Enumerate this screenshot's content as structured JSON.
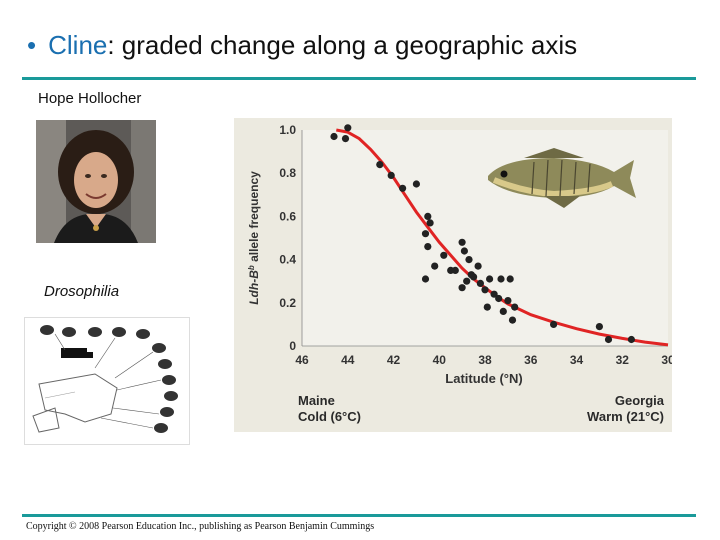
{
  "slide": {
    "bullet": "•",
    "title_key": "Cline",
    "title_rest": ": graded change along a geographic axis",
    "author": "Hope Hollocher",
    "drosophila_label": "Drosophilia",
    "copyright": "Copyright © 2008 Pearson Education Inc., publishing as Pearson Benjamin Cummings"
  },
  "colors": {
    "accent": "#1a6fb0",
    "rule": "#1a9a9a",
    "chart_bg": "#eceae0",
    "curve": "#e02424",
    "point": "#222222",
    "axis_text": "#333333"
  },
  "chart_data": {
    "type": "scatter",
    "title": "",
    "xlabel": "Latitude (°N)",
    "ylabel": "Ldh-Bb allele frequency",
    "ylabel_main": "Ldh-B",
    "ylabel_sup": "b",
    "ylabel_rest": " allele frequency",
    "xlim": [
      46,
      30
    ],
    "ylim": [
      0,
      1.0
    ],
    "xticks": [
      "46",
      "44",
      "42",
      "40",
      "38",
      "36",
      "34",
      "32",
      "30"
    ],
    "yticks": [
      "0",
      "0.2",
      "0.4",
      "0.6",
      "0.8",
      "1.0"
    ],
    "left_annotation": [
      "Maine",
      "Cold (6°C)"
    ],
    "right_annotation": [
      "Georgia",
      "Warm (21°C)"
    ],
    "points": [
      [
        44.6,
        0.97
      ],
      [
        44.1,
        0.96
      ],
      [
        44.0,
        1.01
      ],
      [
        42.6,
        0.84
      ],
      [
        42.1,
        0.79
      ],
      [
        41.6,
        0.73
      ],
      [
        41.0,
        0.75
      ],
      [
        40.5,
        0.6
      ],
      [
        40.4,
        0.57
      ],
      [
        40.6,
        0.52
      ],
      [
        40.5,
        0.46
      ],
      [
        40.2,
        0.37
      ],
      [
        39.8,
        0.42
      ],
      [
        40.6,
        0.31
      ],
      [
        39.3,
        0.35
      ],
      [
        39.0,
        0.48
      ],
      [
        38.9,
        0.44
      ],
      [
        38.7,
        0.4
      ],
      [
        38.5,
        0.32
      ],
      [
        38.3,
        0.37
      ],
      [
        38.8,
        0.3
      ],
      [
        39.0,
        0.27
      ],
      [
        38.0,
        0.26
      ],
      [
        37.8,
        0.31
      ],
      [
        37.6,
        0.24
      ],
      [
        37.4,
        0.22
      ],
      [
        37.3,
        0.31
      ],
      [
        38.2,
        0.29
      ],
      [
        37.0,
        0.21
      ],
      [
        36.9,
        0.31
      ],
      [
        37.9,
        0.18
      ],
      [
        37.2,
        0.16
      ],
      [
        36.8,
        0.12
      ],
      [
        36.7,
        0.18
      ],
      [
        38.6,
        0.33
      ],
      [
        39.5,
        0.35
      ],
      [
        35.0,
        0.1
      ],
      [
        33.0,
        0.09
      ],
      [
        32.6,
        0.03
      ],
      [
        31.6,
        0.03
      ]
    ],
    "curve_points": [
      [
        44.5,
        1.0
      ],
      [
        44.0,
        0.99
      ],
      [
        43.5,
        0.96
      ],
      [
        43.0,
        0.91
      ],
      [
        42.5,
        0.85
      ],
      [
        42.0,
        0.78
      ],
      [
        41.5,
        0.7
      ],
      [
        41.0,
        0.62
      ],
      [
        40.5,
        0.55
      ],
      [
        40.0,
        0.48
      ],
      [
        39.5,
        0.42
      ],
      [
        39.0,
        0.36
      ],
      [
        38.5,
        0.31
      ],
      [
        38.0,
        0.27
      ],
      [
        37.5,
        0.23
      ],
      [
        37.0,
        0.195
      ],
      [
        36.0,
        0.145
      ],
      [
        35.0,
        0.11
      ],
      [
        34.0,
        0.08
      ],
      [
        33.0,
        0.055
      ],
      [
        32.0,
        0.035
      ],
      [
        31.0,
        0.018
      ],
      [
        30.0,
        0.005
      ]
    ]
  }
}
